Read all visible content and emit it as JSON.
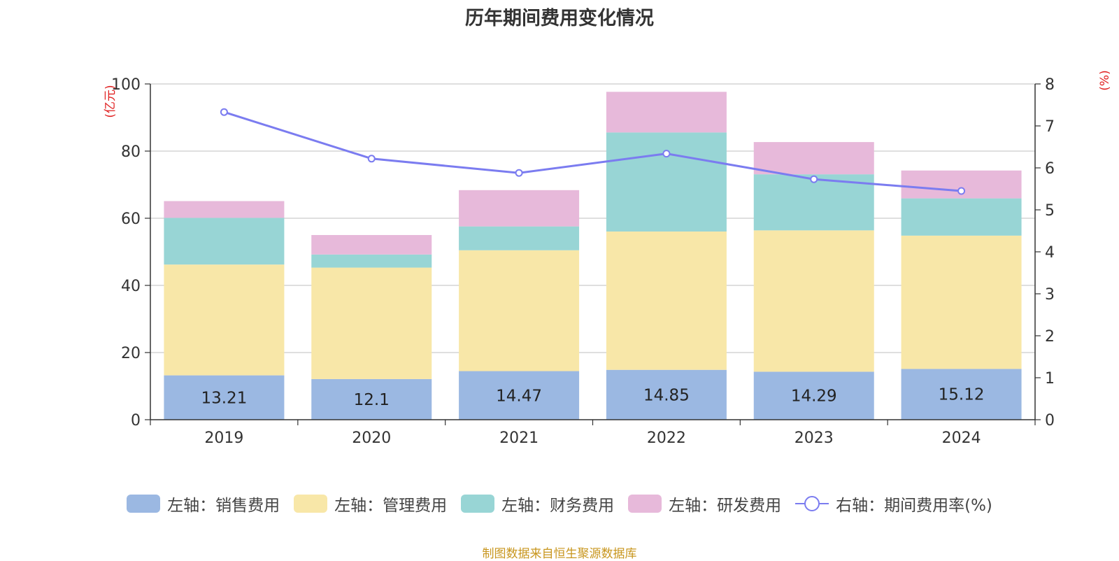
{
  "title": "历年期间费用变化情况",
  "left_axis_unit": "(亿元)",
  "right_axis_unit": "(%)",
  "legend": {
    "sales": "左轴：销售费用",
    "admin": "左轴：管理费用",
    "finance": "左轴：财务费用",
    "rd": "左轴：研发费用",
    "rate": "右轴：期间费用率(%)"
  },
  "source": "制图数据来自恒生聚源数据库",
  "colors": {
    "sales": "#9bb8e2",
    "admin": "#f8e7a8",
    "finance": "#98d5d5",
    "rd": "#e7b9da",
    "rate": "#7b7cf0",
    "axis_unit": "#e02020",
    "source": "#c8961e"
  },
  "chart_data": {
    "type": "bar",
    "stacked": true,
    "categories": [
      "2019",
      "2020",
      "2021",
      "2022",
      "2023",
      "2024"
    ],
    "series": [
      {
        "key": "sales",
        "name": "左轴：销售费用",
        "axis": "left",
        "values": [
          13.21,
          12.1,
          14.47,
          14.85,
          14.29,
          15.12
        ]
      },
      {
        "key": "admin",
        "name": "左轴：管理费用",
        "axis": "left",
        "values": [
          33.0,
          33.2,
          36.0,
          41.2,
          42.1,
          39.7
        ]
      },
      {
        "key": "finance",
        "name": "左轴：财务费用",
        "axis": "left",
        "values": [
          13.9,
          3.9,
          7.1,
          29.5,
          16.7,
          11.1
        ]
      },
      {
        "key": "rd",
        "name": "左轴：研发费用",
        "axis": "left",
        "values": [
          5.0,
          5.8,
          10.8,
          12.1,
          9.6,
          8.3
        ]
      },
      {
        "key": "rate",
        "name": "右轴：期间费用率(%)",
        "axis": "right",
        "type": "line",
        "values": [
          7.33,
          6.22,
          5.88,
          6.34,
          5.73,
          5.45
        ]
      }
    ],
    "data_labels": [
      "13.21",
      "12.1",
      "14.47",
      "14.85",
      "14.29",
      "15.12"
    ],
    "left_ticks": [
      "0",
      "20",
      "40",
      "60",
      "80",
      "100"
    ],
    "right_ticks": [
      "0",
      "1",
      "2",
      "3",
      "4",
      "5",
      "6",
      "7",
      "8"
    ],
    "ylim": [
      0,
      100
    ],
    "y2lim": [
      0,
      8
    ],
    "grid": true
  }
}
